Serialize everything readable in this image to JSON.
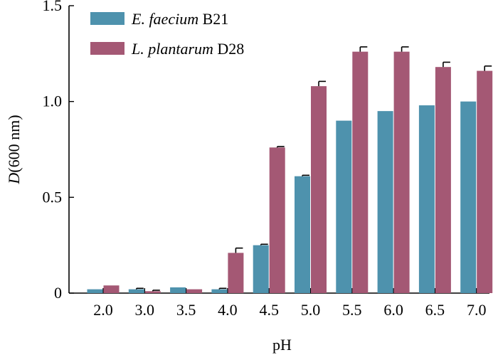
{
  "chart_data": {
    "type": "bar",
    "title": "",
    "xlabel": "pH",
    "ylabel": {
      "italic": "D",
      "rest": "(600 nm)"
    },
    "ylim": [
      0,
      1.5
    ],
    "yticks": [
      "0",
      "0.5",
      "1.0",
      "1.5"
    ],
    "ytick_values": [
      0,
      0.5,
      1.0,
      1.5
    ],
    "categories": [
      "2.0",
      "3.0",
      "3.5",
      "4.0",
      "4.5",
      "5.0",
      "5.5",
      "6.0",
      "6.5",
      "7.0"
    ],
    "legend_position": "top-left",
    "series": [
      {
        "name": "E. faecium B21",
        "name_italic": "E. faecium",
        "name_rest": " B21",
        "color": "#4e92ad",
        "values": [
          0.02,
          0.02,
          0.03,
          0.02,
          0.25,
          0.61,
          0.9,
          0.95,
          0.98,
          1.0
        ],
        "errors": [
          0.0,
          0.005,
          0.0,
          0.005,
          0.005,
          0.005,
          0.0,
          0.0,
          0.0,
          0.0
        ]
      },
      {
        "name": "L. plantarum D28",
        "name_italic": "L. plantarum",
        "name_rest": " D28",
        "color": "#a45874",
        "values": [
          0.04,
          0.01,
          0.02,
          0.21,
          0.76,
          1.08,
          1.26,
          1.26,
          1.18,
          1.16
        ],
        "errors": [
          0.0,
          0.005,
          0.0,
          0.025,
          0.005,
          0.025,
          0.025,
          0.025,
          0.025,
          0.025
        ]
      }
    ]
  }
}
